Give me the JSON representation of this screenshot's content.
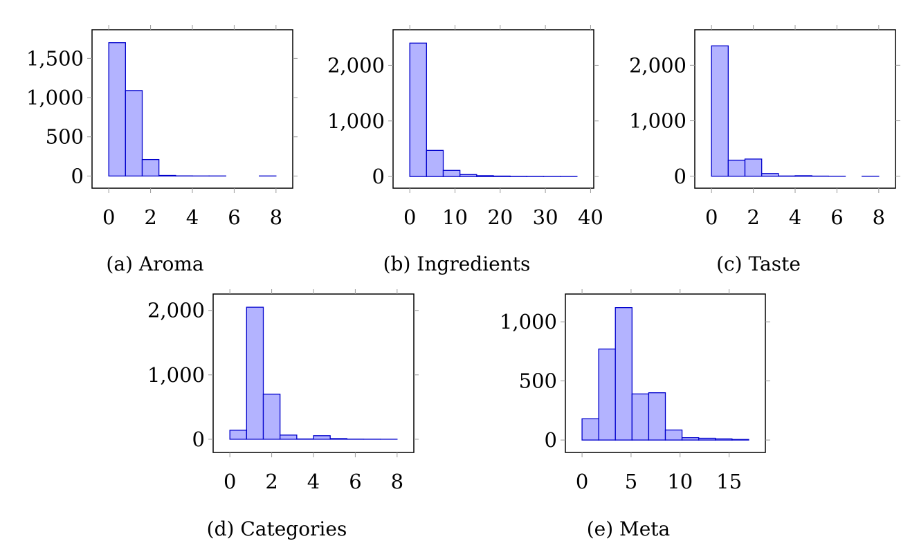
{
  "chart_data": [
    {
      "type": "bar",
      "caption": "(a) Aroma",
      "bin_edges": [
        0,
        0.8,
        1.6,
        2.4,
        3.2,
        4.0,
        4.8,
        5.6,
        6.4,
        7.2,
        8.0
      ],
      "values": [
        1700,
        1090,
        210,
        8,
        2,
        1,
        1,
        0,
        0,
        1
      ],
      "xticks": [
        0,
        2,
        4,
        6,
        8
      ],
      "xtick_labels": [
        "0",
        "2",
        "4",
        "6",
        "8"
      ],
      "yticks": [
        0,
        500,
        1000,
        1500
      ],
      "ytick_labels": [
        "0",
        "500",
        "1,000",
        "1,500"
      ],
      "xlim": [
        -0.8,
        8.8
      ],
      "ylim": [
        -155,
        1865
      ]
    },
    {
      "type": "bar",
      "caption": "(b) Ingredients",
      "bin_edges": [
        0,
        3.7,
        7.4,
        11.1,
        14.8,
        18.5,
        22.2,
        25.9,
        29.6,
        33.3,
        37.0
      ],
      "values": [
        2400,
        470,
        110,
        35,
        15,
        8,
        3,
        2,
        1,
        1
      ],
      "xticks": [
        0,
        10,
        20,
        30,
        40
      ],
      "xtick_labels": [
        "0",
        "10",
        "20",
        "30",
        "40"
      ],
      "yticks": [
        0,
        1000,
        2000
      ],
      "ytick_labels": [
        "0",
        "1,000",
        "2,000"
      ],
      "xlim": [
        -3.7,
        40.7
      ],
      "ylim": [
        -210,
        2640
      ]
    },
    {
      "type": "bar",
      "caption": "(c) Taste",
      "bin_edges": [
        0,
        0.8,
        1.6,
        2.4,
        3.2,
        4.0,
        4.8,
        5.6,
        6.4,
        7.2,
        8.0
      ],
      "values": [
        2350,
        290,
        310,
        50,
        5,
        10,
        3,
        1,
        0,
        1
      ],
      "xticks": [
        0,
        2,
        4,
        6,
        8
      ],
      "xtick_labels": [
        "0",
        "2",
        "4",
        "6",
        "8"
      ],
      "yticks": [
        0,
        1000,
        2000
      ],
      "ytick_labels": [
        "0",
        "1,000",
        "2,000"
      ],
      "xlim": [
        -0.8,
        8.8
      ],
      "ylim": [
        -215,
        2640
      ]
    },
    {
      "type": "bar",
      "caption": "(d) Categories",
      "bin_edges": [
        0,
        0.8,
        1.6,
        2.4,
        3.2,
        4.0,
        4.8,
        5.6,
        6.4,
        7.2,
        8.0
      ],
      "values": [
        140,
        2050,
        700,
        65,
        5,
        55,
        10,
        3,
        2,
        1
      ],
      "xticks": [
        0,
        2,
        4,
        6,
        8
      ],
      "xtick_labels": [
        "0",
        "2",
        "4",
        "6",
        "8"
      ],
      "yticks": [
        0,
        1000,
        2000
      ],
      "ytick_labels": [
        "0",
        "1,000",
        "2,000"
      ],
      "xlim": [
        -0.8,
        8.8
      ],
      "ylim": [
        -205,
        2255
      ]
    },
    {
      "type": "bar",
      "caption": "(e) Meta",
      "bin_edges": [
        0,
        1.7,
        3.4,
        5.1,
        6.8,
        8.5,
        10.2,
        11.9,
        13.6,
        15.3,
        17.0
      ],
      "values": [
        180,
        770,
        1120,
        390,
        400,
        85,
        20,
        15,
        10,
        5
      ],
      "xticks": [
        0,
        5,
        10,
        15
      ],
      "xtick_labels": [
        "0",
        "5",
        "10",
        "15"
      ],
      "yticks": [
        0,
        500,
        1000
      ],
      "ytick_labels": [
        "0",
        "500",
        "1,000"
      ],
      "xlim": [
        -1.7,
        18.7
      ],
      "ylim": [
        -105,
        1235
      ]
    }
  ]
}
